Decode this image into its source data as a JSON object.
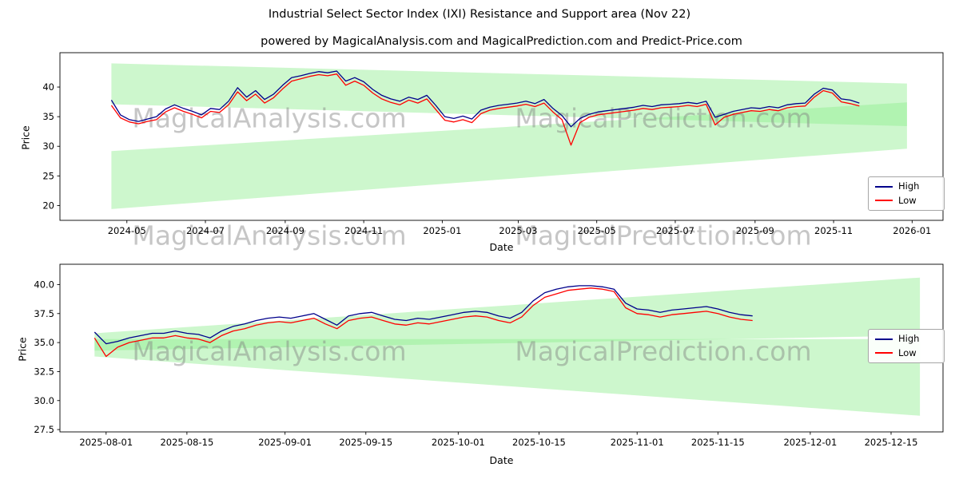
{
  "figure": {
    "title": "Industrial Select Sector Index (IXI) Resistance and Support area (Nov 22)",
    "subtitle": "powered by MagicalAnalysis.com and MagicalPrediction.com and Predict-Price.com"
  },
  "watermarks": {
    "texts": [
      "MagicalAnalysis.com",
      "MagicalPrediction.com"
    ],
    "color": "#808080",
    "opacity": 0.45
  },
  "chart_data": [
    {
      "type": "line",
      "xlabel": "Date",
      "ylabel": "Price",
      "xlim": [
        "2024-03-10",
        "2026-01-25"
      ],
      "ylim": [
        17.5,
        45.8
      ],
      "grid": false,
      "legend_position": "lower right",
      "xticks": [
        {
          "d": "2024-05-01",
          "label": "2024-05"
        },
        {
          "d": "2024-07-01",
          "label": "2024-07"
        },
        {
          "d": "2024-09-01",
          "label": "2024-09"
        },
        {
          "d": "2024-11-01",
          "label": "2024-11"
        },
        {
          "d": "2025-01-01",
          "label": "2025-01"
        },
        {
          "d": "2025-03-01",
          "label": "2025-03"
        },
        {
          "d": "2025-05-01",
          "label": "2025-05"
        },
        {
          "d": "2025-07-01",
          "label": "2025-07"
        },
        {
          "d": "2025-09-01",
          "label": "2025-09"
        },
        {
          "d": "2025-11-01",
          "label": "2025-11"
        },
        {
          "d": "2026-01-01",
          "label": "2026-01"
        }
      ],
      "yticks": [
        {
          "v": 20,
          "label": "20"
        },
        {
          "v": 25,
          "label": "25"
        },
        {
          "v": 30,
          "label": "30"
        },
        {
          "v": 35,
          "label": "35"
        },
        {
          "v": 40,
          "label": "40"
        }
      ],
      "band_color": "#90ee90",
      "band_opacity": 0.45,
      "bands": [
        {
          "points": [
            [
              "2024-04-19",
              44.0
            ],
            [
              "2025-12-28",
              40.6
            ],
            [
              "2025-12-28",
              33.4
            ],
            [
              "2024-04-19",
              37.1
            ]
          ]
        },
        {
          "points": [
            [
              "2024-04-19",
              29.2
            ],
            [
              "2025-12-28",
              37.4
            ],
            [
              "2025-12-28",
              29.6
            ],
            [
              "2024-04-19",
              19.4
            ]
          ]
        }
      ],
      "series": [
        {
          "name": "High",
          "color": "#00008b",
          "x_start": "2024-04-19",
          "x_step_days": 7,
          "values": [
            37.8,
            35.3,
            34.5,
            34.2,
            34.6,
            35.0,
            36.3,
            37.0,
            36.4,
            35.9,
            35.3,
            36.4,
            36.2,
            37.6,
            39.9,
            38.3,
            39.4,
            37.9,
            38.8,
            40.3,
            41.6,
            41.9,
            42.3,
            42.6,
            42.4,
            42.7,
            41.0,
            41.6,
            40.9,
            39.6,
            38.6,
            38.0,
            37.6,
            38.3,
            37.9,
            38.6,
            36.9,
            35.0,
            34.7,
            35.1,
            34.6,
            36.1,
            36.6,
            36.9,
            37.1,
            37.3,
            37.6,
            37.2,
            37.9,
            36.4,
            35.2,
            33.3,
            34.7,
            35.4,
            35.8,
            36.0,
            36.2,
            36.4,
            36.6,
            36.9,
            36.7,
            37.0,
            37.1,
            37.2,
            37.4,
            37.2,
            37.6,
            34.9,
            35.4,
            35.9,
            36.2,
            36.5,
            36.4,
            36.7,
            36.5,
            37.0,
            37.2,
            37.3,
            38.8,
            39.8,
            39.5,
            38.0,
            37.8,
            37.3
          ]
        },
        {
          "name": "Low",
          "color": "#ff0000",
          "x_start": "2024-04-19",
          "x_step_days": 7,
          "values": [
            36.9,
            34.8,
            34.1,
            33.8,
            34.2,
            34.5,
            35.8,
            36.5,
            35.9,
            35.4,
            34.8,
            35.9,
            35.7,
            37.0,
            39.2,
            37.7,
            38.8,
            37.3,
            38.2,
            39.7,
            41.0,
            41.4,
            41.8,
            42.1,
            41.9,
            42.2,
            40.3,
            41.0,
            40.3,
            39.0,
            38.0,
            37.4,
            37.0,
            37.8,
            37.3,
            38.0,
            36.2,
            34.4,
            34.1,
            34.5,
            34.0,
            35.5,
            36.1,
            36.4,
            36.6,
            36.8,
            37.1,
            36.7,
            37.3,
            35.8,
            34.5,
            30.2,
            34.0,
            34.9,
            35.3,
            35.5,
            35.7,
            35.9,
            36.1,
            36.4,
            36.2,
            36.5,
            36.6,
            36.7,
            36.9,
            36.7,
            37.1,
            33.6,
            34.9,
            35.4,
            35.7,
            36.0,
            35.9,
            36.2,
            36.0,
            36.5,
            36.7,
            36.8,
            38.3,
            39.4,
            39.0,
            37.5,
            37.2,
            36.8
          ]
        }
      ]
    },
    {
      "type": "line",
      "xlabel": "Date",
      "ylabel": "Price",
      "xlim": [
        "2025-07-24",
        "2025-12-24"
      ],
      "ylim": [
        27.3,
        41.75
      ],
      "grid": false,
      "legend_position": "right",
      "xticks": [
        {
          "d": "2025-08-01",
          "label": "2025-08-01"
        },
        {
          "d": "2025-08-15",
          "label": "2025-08-15"
        },
        {
          "d": "2025-09-01",
          "label": "2025-09-01"
        },
        {
          "d": "2025-09-15",
          "label": "2025-09-15"
        },
        {
          "d": "2025-10-01",
          "label": "2025-10-01"
        },
        {
          "d": "2025-10-15",
          "label": "2025-10-15"
        },
        {
          "d": "2025-11-01",
          "label": "2025-11-01"
        },
        {
          "d": "2025-11-15",
          "label": "2025-11-15"
        },
        {
          "d": "2025-12-01",
          "label": "2025-12-01"
        },
        {
          "d": "2025-12-15",
          "label": "2025-12-15"
        }
      ],
      "yticks": [
        {
          "v": 27.5,
          "label": "27.5"
        },
        {
          "v": 30,
          "label": "30.0"
        },
        {
          "v": 32.5,
          "label": "32.5"
        },
        {
          "v": 35,
          "label": "35.0"
        },
        {
          "v": 37.5,
          "label": "37.5"
        },
        {
          "v": 40,
          "label": "40.0"
        }
      ],
      "band_color": "#90ee90",
      "band_opacity": 0.45,
      "bands": [
        {
          "points": [
            [
              "2025-07-30",
              35.8
            ],
            [
              "2025-12-20",
              40.6
            ],
            [
              "2025-12-20",
              35.6
            ],
            [
              "2025-07-30",
              34.3
            ]
          ]
        },
        {
          "points": [
            [
              "2025-07-30",
              35.3
            ],
            [
              "2025-12-20",
              35.3
            ],
            [
              "2025-12-20",
              28.7
            ],
            [
              "2025-07-30",
              33.8
            ]
          ]
        }
      ],
      "series": [
        {
          "name": "High",
          "color": "#00008b",
          "x_start": "2025-07-30",
          "x_step_days": 2,
          "values": [
            35.9,
            34.9,
            35.1,
            35.4,
            35.6,
            35.8,
            35.8,
            36.0,
            35.8,
            35.7,
            35.4,
            36.0,
            36.4,
            36.6,
            36.9,
            37.1,
            37.2,
            37.1,
            37.3,
            37.5,
            37.0,
            36.5,
            37.3,
            37.5,
            37.6,
            37.3,
            37.0,
            36.9,
            37.1,
            37.0,
            37.2,
            37.4,
            37.6,
            37.7,
            37.6,
            37.3,
            37.1,
            37.6,
            38.6,
            39.3,
            39.6,
            39.8,
            39.9,
            39.9,
            39.8,
            39.6,
            38.4,
            37.9,
            37.8,
            37.6,
            37.8,
            37.9,
            38.0,
            38.1,
            37.9,
            37.6,
            37.4,
            37.3
          ]
        },
        {
          "name": "Low",
          "color": "#ff0000",
          "x_start": "2025-07-30",
          "x_step_days": 2,
          "values": [
            35.4,
            33.8,
            34.6,
            35.0,
            35.2,
            35.4,
            35.4,
            35.6,
            35.4,
            35.3,
            35.0,
            35.6,
            36.0,
            36.2,
            36.5,
            36.7,
            36.8,
            36.7,
            36.9,
            37.1,
            36.6,
            36.2,
            36.9,
            37.1,
            37.2,
            36.9,
            36.6,
            36.5,
            36.7,
            36.6,
            36.8,
            37.0,
            37.2,
            37.3,
            37.2,
            36.9,
            36.7,
            37.2,
            38.2,
            38.9,
            39.2,
            39.5,
            39.6,
            39.7,
            39.6,
            39.4,
            38.0,
            37.5,
            37.4,
            37.2,
            37.4,
            37.5,
            37.6,
            37.7,
            37.5,
            37.2,
            37.0,
            36.9
          ]
        }
      ]
    }
  ]
}
